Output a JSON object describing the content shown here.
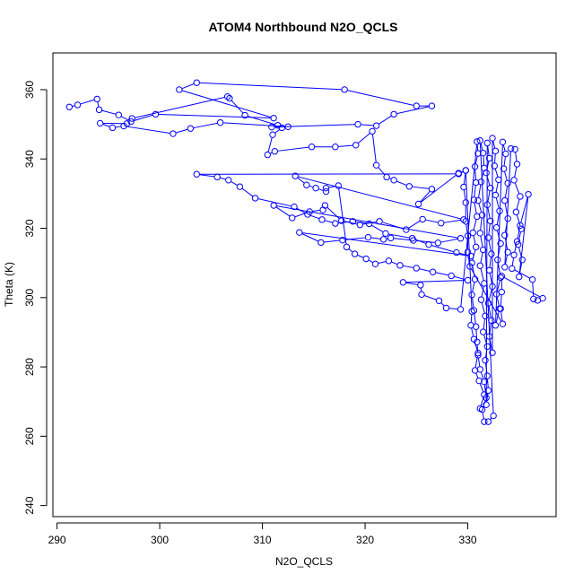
{
  "chart_data": {
    "type": "scatter",
    "title": "ATOM4 Northbound N2O_QCLS",
    "xlabel": "N2O_QCLS",
    "ylabel": "Theta (K)",
    "xlim": [
      289.6,
      338.6
    ],
    "ylim": [
      236.8,
      370.6
    ],
    "xticks": [
      290,
      300,
      310,
      320,
      330
    ],
    "yticks": [
      240,
      260,
      280,
      300,
      320,
      340,
      360
    ],
    "grid": false,
    "legend": "none",
    "series": [
      {
        "color": "#0000ff",
        "marker": "open-circle",
        "connected": true,
        "points": [
          [
            291.2,
            355.0
          ],
          [
            292.0,
            355.6
          ],
          [
            293.9,
            357.3
          ],
          [
            294.1,
            354.2
          ],
          [
            296.0,
            352.7
          ],
          [
            297.2,
            350.8
          ],
          [
            299.6,
            352.9
          ],
          [
            311.1,
            351.8
          ],
          [
            301.9,
            360.0
          ],
          [
            303.6,
            362.0
          ],
          [
            318.0,
            360.0
          ],
          [
            325.0,
            355.3
          ],
          [
            326.5,
            355.3
          ],
          [
            322.8,
            352.9
          ],
          [
            321.1,
            349.6
          ],
          [
            319.3,
            350.0
          ],
          [
            310.9,
            349.2
          ],
          [
            312.5,
            349.3
          ],
          [
            305.9,
            350.5
          ],
          [
            303.0,
            348.8
          ],
          [
            301.3,
            347.3
          ],
          [
            296.5,
            349.5
          ],
          [
            295.4,
            349.0
          ],
          [
            294.2,
            350.3
          ],
          [
            296.8,
            350.2
          ],
          [
            297.3,
            351.7
          ],
          [
            306.6,
            358.0
          ],
          [
            306.8,
            357.5
          ],
          [
            308.3,
            352.6
          ],
          [
            311.5,
            349.7
          ],
          [
            311.9,
            349.0
          ],
          [
            311.0,
            347.0
          ],
          [
            310.5,
            341.2
          ],
          [
            311.2,
            342.2
          ],
          [
            314.8,
            343.5
          ],
          [
            317.1,
            343.5
          ],
          [
            319.1,
            344.0
          ],
          [
            320.7,
            348.0
          ],
          [
            321.1,
            338.2
          ],
          [
            322.1,
            334.8
          ],
          [
            322.8,
            333.9
          ],
          [
            324.3,
            332.1
          ],
          [
            326.5,
            331.3
          ],
          [
            325.2,
            327.0
          ],
          [
            329.1,
            335.9
          ],
          [
            329.8,
            336.7
          ],
          [
            329.1,
            335.7
          ],
          [
            303.6,
            335.6
          ],
          [
            305.6,
            334.8
          ],
          [
            306.7,
            333.9
          ],
          [
            307.8,
            332.0
          ],
          [
            309.3,
            328.7
          ],
          [
            313.1,
            326.2
          ],
          [
            314.4,
            324.0
          ],
          [
            315.8,
            322.5
          ],
          [
            317.1,
            321.4
          ],
          [
            318.8,
            322.0
          ],
          [
            320.4,
            321.3
          ],
          [
            322.0,
            318.5
          ],
          [
            324.6,
            317.1
          ],
          [
            326.2,
            315.3
          ],
          [
            328.9,
            313.0
          ],
          [
            330.3,
            312.0
          ],
          [
            313.6,
            318.8
          ],
          [
            315.7,
            315.9
          ],
          [
            317.8,
            316.6
          ],
          [
            320.3,
            317.4
          ],
          [
            321.8,
            316.8
          ],
          [
            322.5,
            317.2
          ],
          [
            324.7,
            316.5
          ],
          [
            327.1,
            315.8
          ],
          [
            329.3,
            317.1
          ],
          [
            311.1,
            326.6
          ],
          [
            312.9,
            323.0
          ],
          [
            314.6,
            324.8
          ],
          [
            315.9,
            325.3
          ],
          [
            316.1,
            326.6
          ],
          [
            317.7,
            322.2
          ],
          [
            319.5,
            321.0
          ],
          [
            321.4,
            322.0
          ],
          [
            324.0,
            319.6
          ],
          [
            325.6,
            322.6
          ],
          [
            327.4,
            321.5
          ],
          [
            329.6,
            322.5
          ],
          [
            313.2,
            335.1
          ],
          [
            314.3,
            332.5
          ],
          [
            315.2,
            331.6
          ],
          [
            316.2,
            330.6
          ],
          [
            316.2,
            331.6
          ],
          [
            317.4,
            332.3
          ],
          [
            318.2,
            314.6
          ],
          [
            319.0,
            312.6
          ],
          [
            320.1,
            311.2
          ],
          [
            321.0,
            309.7
          ],
          [
            322.3,
            310.6
          ],
          [
            323.4,
            309.3
          ],
          [
            325.0,
            308.5
          ],
          [
            326.6,
            307.4
          ],
          [
            328.4,
            306.3
          ],
          [
            330.0,
            305.0
          ],
          [
            323.7,
            304.4
          ],
          [
            325.4,
            303.6
          ],
          [
            325.5,
            300.9
          ],
          [
            327.2,
            299.1
          ],
          [
            327.9,
            297.0
          ],
          [
            329.3,
            296.6
          ],
          [
            330.9,
            345.0
          ],
          [
            331.0,
            341.6
          ],
          [
            330.7,
            337.8
          ],
          [
            330.8,
            333.2
          ],
          [
            330.6,
            328.2
          ],
          [
            330.9,
            323.4
          ],
          [
            330.5,
            318.7
          ],
          [
            330.8,
            314.6
          ],
          [
            330.4,
            310.0
          ],
          [
            330.7,
            305.3
          ],
          [
            330.4,
            300.8
          ],
          [
            330.6,
            296.3
          ],
          [
            330.8,
            291.6
          ],
          [
            330.9,
            287.2
          ],
          [
            331.0,
            283.4
          ],
          [
            331.2,
            279.3
          ],
          [
            331.6,
            275.7
          ],
          [
            331.8,
            271.1
          ],
          [
            331.4,
            267.7
          ],
          [
            331.6,
            264.2
          ],
          [
            332.0,
            264.2
          ],
          [
            332.5,
            265.9
          ],
          [
            331.2,
            345.3
          ],
          [
            331.5,
            341.7
          ],
          [
            331.6,
            337.4
          ],
          [
            331.3,
            333.4
          ],
          [
            331.0,
            328.0
          ],
          [
            331.4,
            323.8
          ],
          [
            331.2,
            318.6
          ],
          [
            331.5,
            313.8
          ],
          [
            331.2,
            309.2
          ],
          [
            331.6,
            304.1
          ],
          [
            331.3,
            299.4
          ],
          [
            331.7,
            294.7
          ],
          [
            331.5,
            290.1
          ],
          [
            331.9,
            285.9
          ],
          [
            331.7,
            281.9
          ],
          [
            331.9,
            277.4
          ],
          [
            332.0,
            273.2
          ],
          [
            331.8,
            269.1
          ],
          [
            331.9,
            344.6
          ],
          [
            332.1,
            340.2
          ],
          [
            331.8,
            336.0
          ],
          [
            332.2,
            331.6
          ],
          [
            331.9,
            326.8
          ],
          [
            332.2,
            322.1
          ],
          [
            332.0,
            317.3
          ],
          [
            332.3,
            312.6
          ],
          [
            332.1,
            307.9
          ],
          [
            332.4,
            303.2
          ],
          [
            332.0,
            298.4
          ],
          [
            332.3,
            293.4
          ],
          [
            332.1,
            288.8
          ],
          [
            332.4,
            284.1
          ],
          [
            332.4,
            346.0
          ],
          [
            332.7,
            342.3
          ],
          [
            332.6,
            338.0
          ],
          [
            333.0,
            334.0
          ],
          [
            332.7,
            329.6
          ],
          [
            333.1,
            325.0
          ],
          [
            332.8,
            320.2
          ],
          [
            333.2,
            315.6
          ],
          [
            332.9,
            310.9
          ],
          [
            333.2,
            305.8
          ],
          [
            332.8,
            301.0
          ],
          [
            333.1,
            296.8
          ],
          [
            332.7,
            292.0
          ],
          [
            333.4,
            344.9
          ],
          [
            333.7,
            341.5
          ],
          [
            333.5,
            337.2
          ],
          [
            333.9,
            333.0
          ],
          [
            333.6,
            328.0
          ],
          [
            333.9,
            322.8
          ],
          [
            333.6,
            318.0
          ],
          [
            333.9,
            313.1
          ],
          [
            333.6,
            308.8
          ],
          [
            334.2,
            343.0
          ],
          [
            334.6,
            342.8
          ],
          [
            334.8,
            338.5
          ],
          [
            334.5,
            333.9
          ],
          [
            335.1,
            329.2
          ],
          [
            334.7,
            324.7
          ],
          [
            335.2,
            319.8
          ],
          [
            334.9,
            315.3
          ],
          [
            335.3,
            310.9
          ],
          [
            335.0,
            306.0
          ],
          [
            335.9,
            329.8
          ],
          [
            335.1,
            320.8
          ],
          [
            334.8,
            316.2
          ],
          [
            334.5,
            312.3
          ],
          [
            334.3,
            308.4
          ],
          [
            336.3,
            305.2
          ],
          [
            336.4,
            299.6
          ],
          [
            336.8,
            299.2
          ],
          [
            337.3,
            299.8
          ],
          [
            333.3,
            306.2
          ],
          [
            333.3,
            301.6
          ],
          [
            333.2,
            296.8
          ],
          [
            333.4,
            292.4
          ],
          [
            330.2,
            309.0
          ],
          [
            330.0,
            313.1
          ],
          [
            330.0,
            317.8
          ],
          [
            329.8,
            322.0
          ],
          [
            329.8,
            327.4
          ],
          [
            329.6,
            331.9
          ],
          [
            329.8,
            336.7
          ],
          [
            330.4,
            296.0
          ],
          [
            330.3,
            292.0
          ],
          [
            330.6,
            288.0
          ],
          [
            331.0,
            284.0
          ],
          [
            330.7,
            279.0
          ],
          [
            331.1,
            276.0
          ],
          [
            331.6,
            272.0
          ],
          [
            331.2,
            268.0
          ]
        ]
      }
    ]
  }
}
